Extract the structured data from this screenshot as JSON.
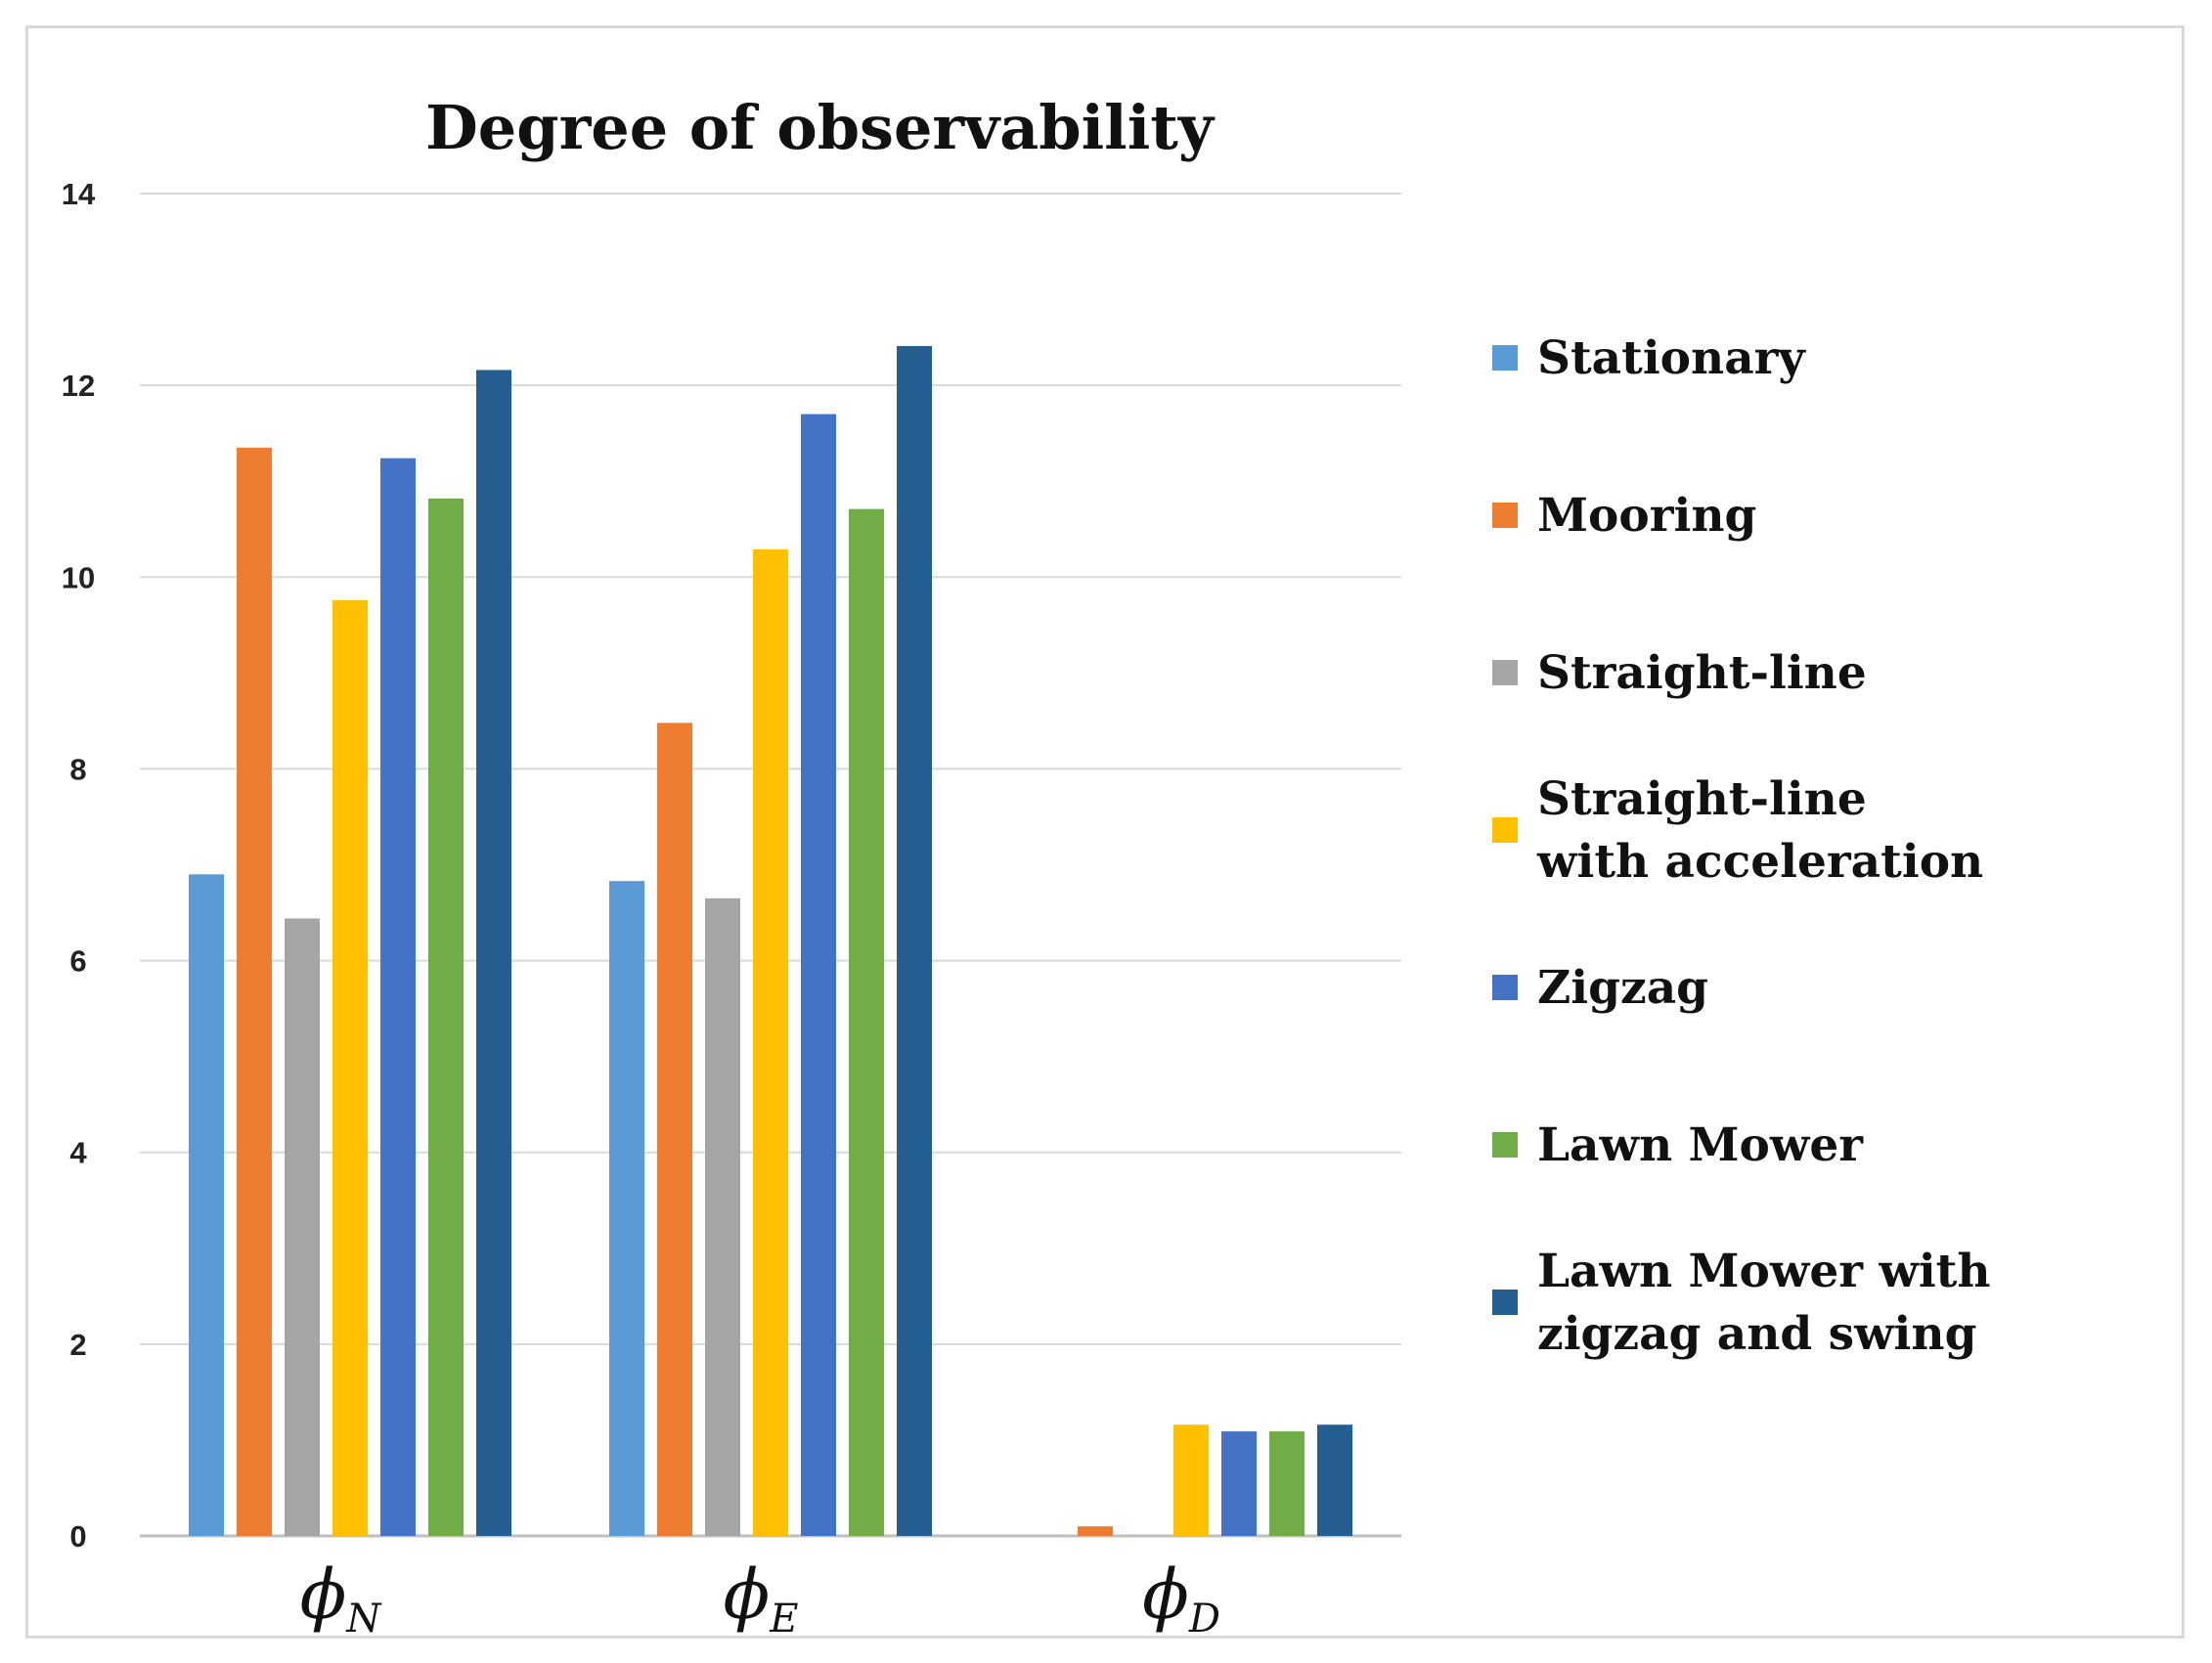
{
  "chart_data": {
    "type": "bar",
    "title": "Degree of observability",
    "xlabel": "",
    "ylabel": "",
    "ylim": [
      0,
      14
    ],
    "yticks": [
      0,
      2,
      4,
      6,
      8,
      10,
      12,
      14
    ],
    "grid": true,
    "legend_position": "right",
    "categories": [
      {
        "symbol": "ϕ",
        "sub": "N"
      },
      {
        "symbol": "ϕ",
        "sub": "E"
      },
      {
        "symbol": "ϕ",
        "sub": "D"
      }
    ],
    "series": [
      {
        "name": "Stationary",
        "legend_lines": [
          "Stationary"
        ],
        "color": "#5B9BD5",
        "values": [
          6.9,
          6.83,
          0
        ]
      },
      {
        "name": "Mooring",
        "legend_lines": [
          "Mooring"
        ],
        "color": "#ED7D31",
        "values": [
          11.35,
          8.48,
          0.1
        ]
      },
      {
        "name": "Straight-line",
        "legend_lines": [
          "Straight-line"
        ],
        "color": "#A5A5A5",
        "values": [
          6.44,
          6.65,
          0
        ]
      },
      {
        "name": "Straight-line with acceleration",
        "legend_lines": [
          "Straight-line",
          "with acceleration"
        ],
        "color": "#FFC000",
        "values": [
          9.76,
          10.29,
          1.16
        ]
      },
      {
        "name": "Zigzag",
        "legend_lines": [
          " Zigzag"
        ],
        "color": "#4472C4",
        "values": [
          11.24,
          11.7,
          1.09
        ]
      },
      {
        "name": "Lawn Mower",
        "legend_lines": [
          "Lawn Mower"
        ],
        "color": "#70AD47",
        "values": [
          10.82,
          10.71,
          1.09
        ]
      },
      {
        "name": "Lawn Mower with zigzag and swing",
        "legend_lines": [
          "Lawn Mower with",
          "zigzag and swing"
        ],
        "color": "#255E91",
        "values": [
          12.16,
          12.41,
          1.16
        ]
      }
    ]
  }
}
